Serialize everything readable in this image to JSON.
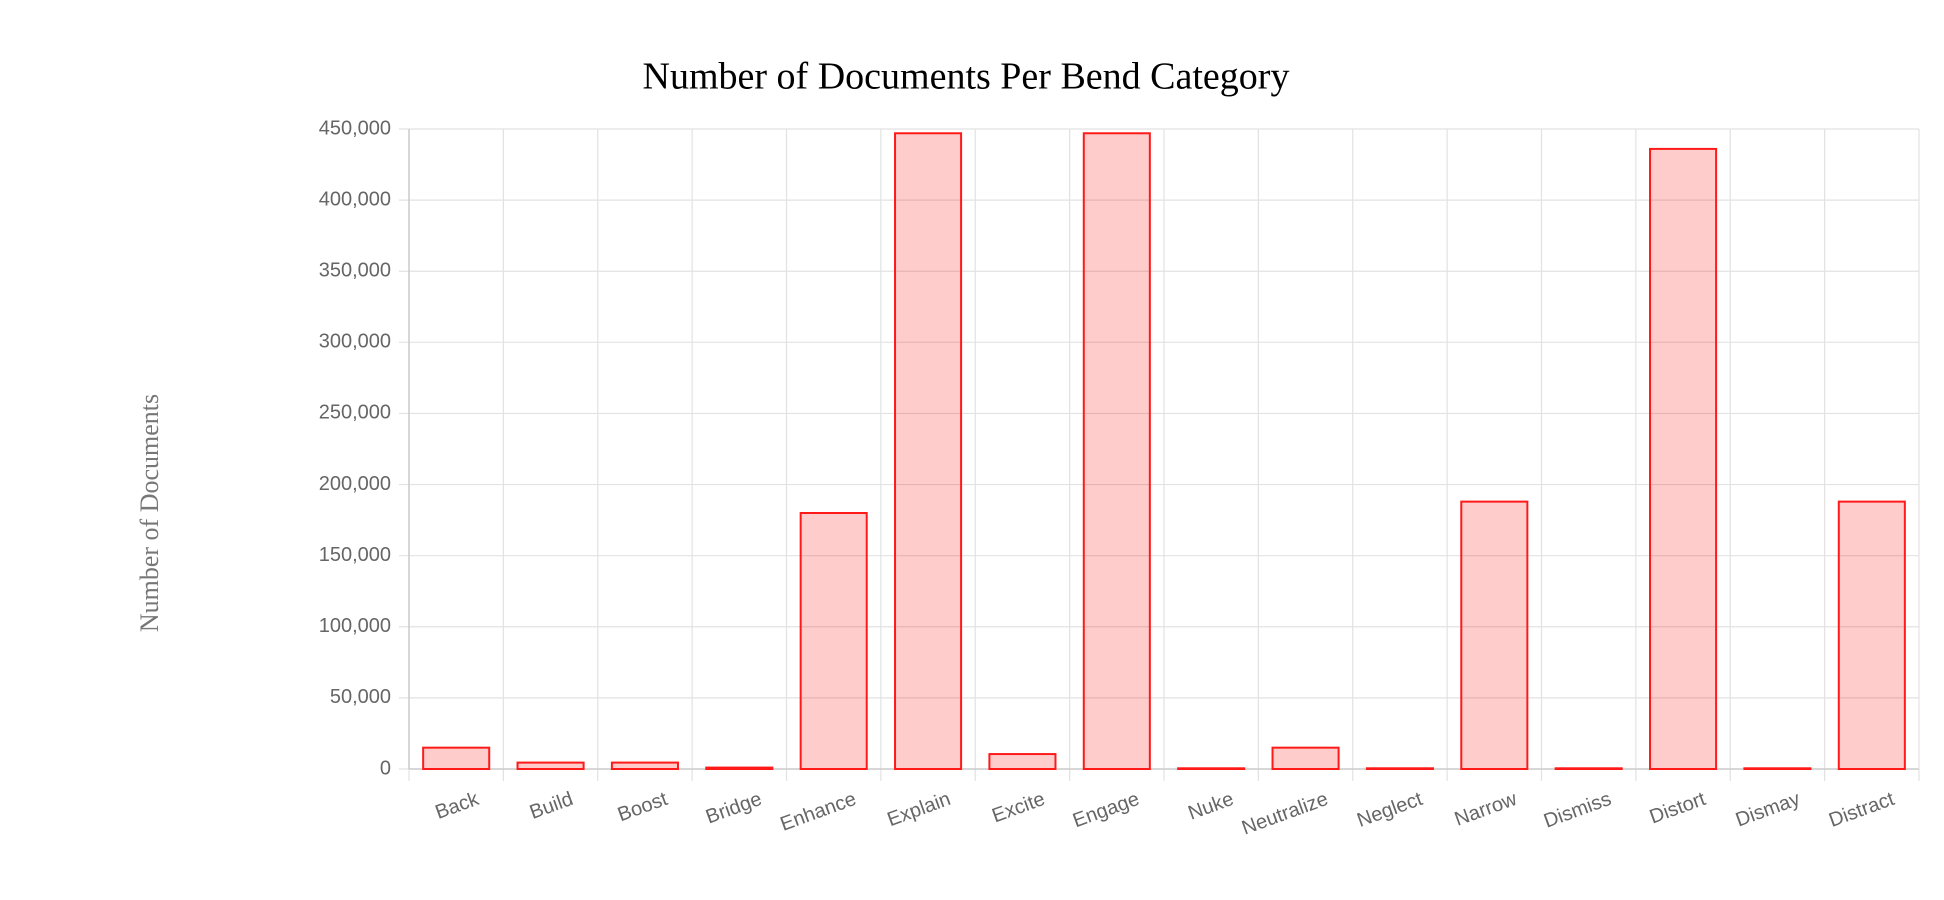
{
  "chart_data": {
    "type": "bar",
    "title": "Number of Documents Per Bend Category",
    "y_label": "Number of Documents",
    "categories": [
      "Back",
      "Build",
      "Boost",
      "Bridge",
      "Enhance",
      "Explain",
      "Excite",
      "Engage",
      "Nuke",
      "Neutralize",
      "Neglect",
      "Narrow",
      "Dismiss",
      "Distort",
      "Dismay",
      "Distract"
    ],
    "values": [
      15000,
      4500,
      4500,
      1000,
      180000,
      447000,
      10500,
      447000,
      500,
      15000,
      500,
      188000,
      500,
      436000,
      500,
      188000
    ],
    "color": "rgba(255, 0, 0, 0.2)",
    "border_color": "#ff1a1a",
    "ylim": [
      0,
      450000
    ],
    "yticks": [
      0,
      {
        "value": 50000,
        "label": "50,000"
      },
      {
        "value": 100000,
        "label": "100,000"
      },
      {
        "value": 150000,
        "label": "150,000"
      },
      {
        "value": 200000,
        "label": "200,000"
      },
      {
        "value": 250000,
        "label": "250,000"
      },
      {
        "value": 300000,
        "label": "300,000"
      },
      {
        "value": 350000,
        "label": "350,000"
      },
      {
        "value": 400000,
        "label": "400,000"
      },
      {
        "value": 450000,
        "label": "450,000"
      }
    ],
    "grid": true
  }
}
